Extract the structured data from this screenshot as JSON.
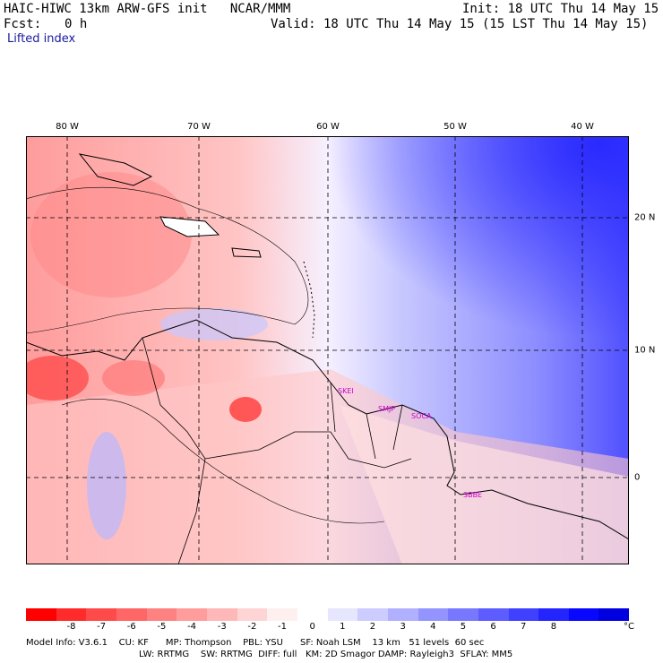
{
  "header": {
    "model_line": "HAIC-HIWC 13km ARW-GFS init   NCAR/MMM",
    "init": "Init: 18 UTC Thu 14 May 15",
    "fcst_label": "Fcst:",
    "fcst_value": "0 h",
    "valid": "Valid: 18 UTC Thu 14 May 15 (15 LST Thu 14 May 15)",
    "field": "Lifted index"
  },
  "axes": {
    "lon_labels": [
      "80 W",
      "70 W",
      "60 W",
      "50 W",
      "40 W"
    ],
    "lat_labels": [
      "20 N",
      "10 N",
      "0"
    ]
  },
  "stations": [
    "SKEI",
    "SMJP",
    "SOCA",
    "SBBE"
  ],
  "colorbar": {
    "colors": [
      "#ff0000",
      "#ff2a2a",
      "#ff4a4a",
      "#ff6666",
      "#ff8282",
      "#ff9c9c",
      "#ffb8b8",
      "#ffd4d4",
      "#fff0f0",
      "#ffffff",
      "#e6e6ff",
      "#ccccff",
      "#b0b0ff",
      "#9494ff",
      "#7878ff",
      "#5c5cff",
      "#4040ff",
      "#2424ff",
      "#0808ff",
      "#0000e0"
    ],
    "labels": [
      "-8",
      "-7",
      "-6",
      "-5",
      "-4",
      "-3",
      "-2",
      "-1",
      "0",
      "1",
      "2",
      "3",
      "4",
      "5",
      "6",
      "7",
      "8"
    ],
    "unit": "°C"
  },
  "footer": {
    "line1": "Model Info: V3.6.1    CU: KF      MP: Thompson    PBL: YSU      SF: Noah LSM    13 km   51 levels  60 sec",
    "line2": "LW: RRTMG    SW: RRTMG  DIFF: full   KM: 2D Smagor DAMP: Rayleigh3  SFLAY: MM5"
  }
}
